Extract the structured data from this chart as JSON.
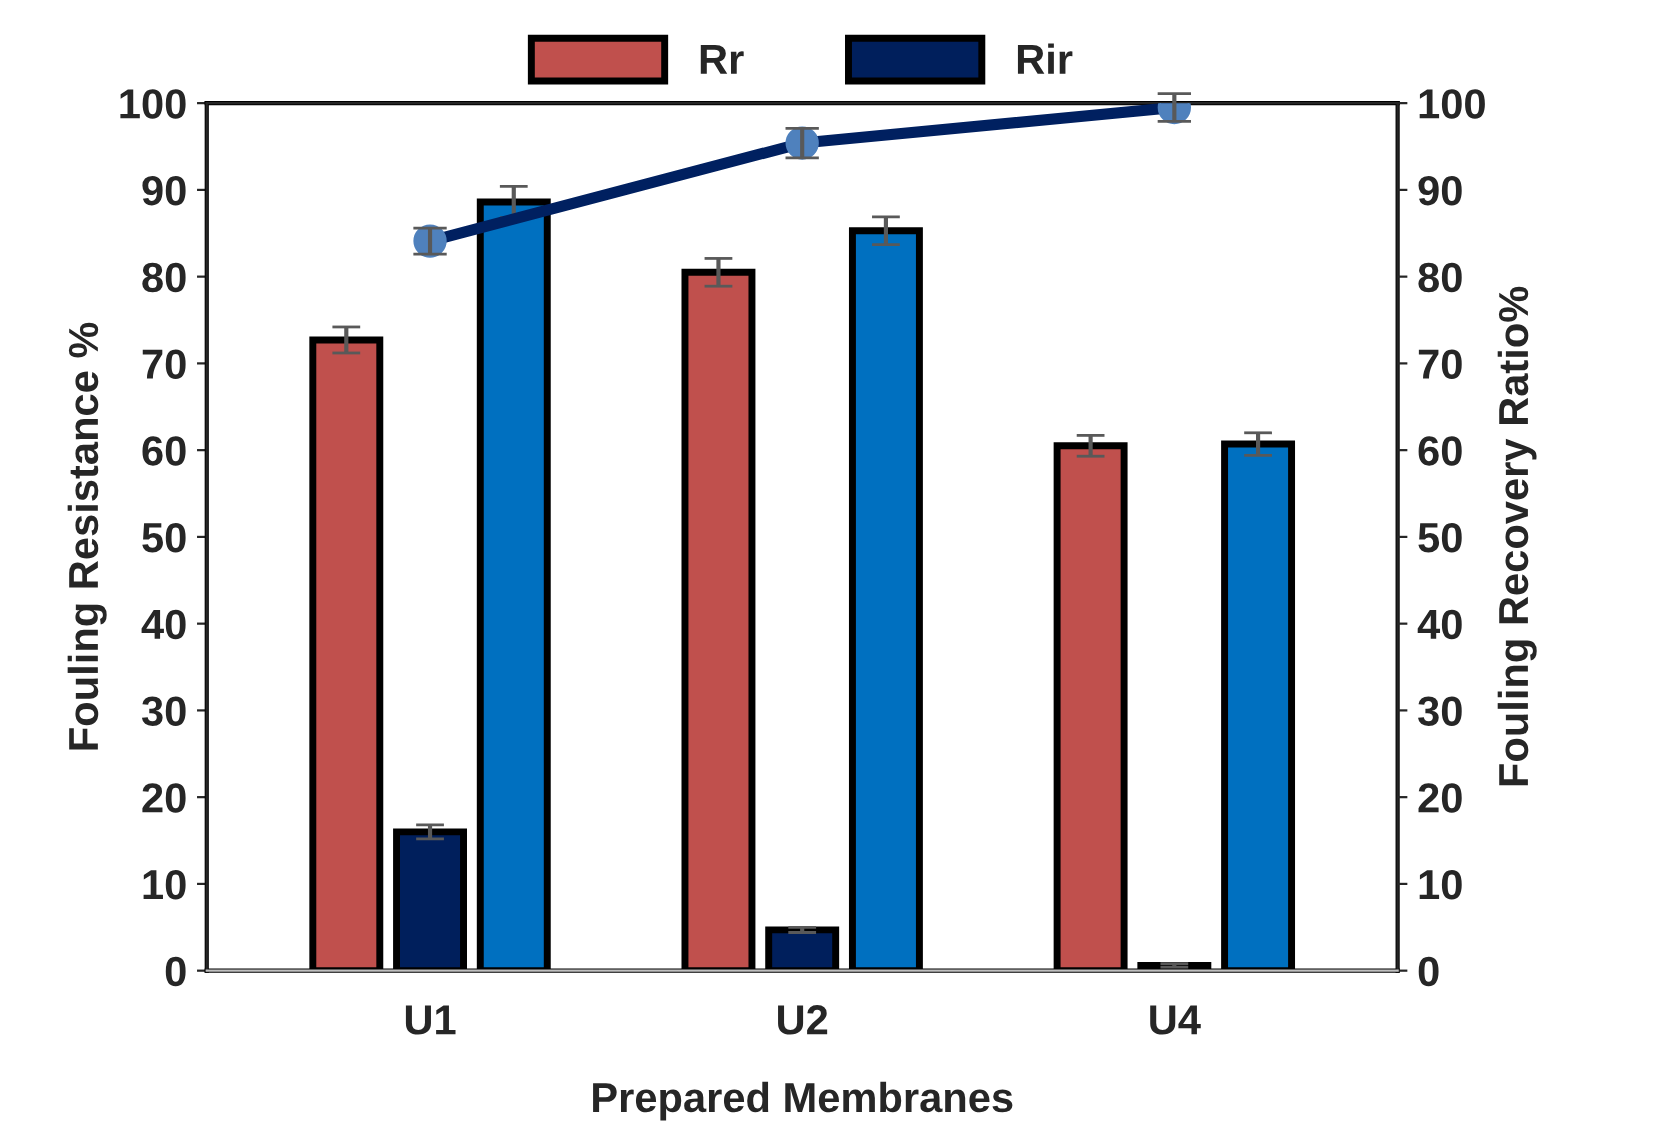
{
  "chart_data": {
    "type": "bar",
    "xlabel": "Prepared Membranes",
    "ylabel": "Fouling Resistance %",
    "y2label": "Fouling Recovery Ratio%",
    "categories": [
      "U1",
      "U2",
      "U4"
    ],
    "series": [
      {
        "name": "Rr",
        "color": "#c0504d",
        "values": [
          72.7,
          80.5,
          60.5
        ],
        "errors": [
          1.5,
          1.6,
          1.2
        ]
      },
      {
        "name": "Rir",
        "color": "#001f5c",
        "values": [
          16.0,
          4.7,
          0.6
        ],
        "errors": [
          0.8,
          0.3,
          0.2
        ]
      },
      {
        "color": "#0070c0",
        "values": [
          88.6,
          85.3,
          60.7
        ],
        "errors": [
          1.8,
          1.6,
          1.3
        ]
      },
      {
        "type": "line",
        "axis": "y2",
        "color": "#002060",
        "values": [
          84.1,
          95.4,
          99.5
        ],
        "errors": [
          1.5,
          1.7,
          1.6
        ]
      }
    ],
    "ylim": [
      0,
      100
    ],
    "yticks": [
      0,
      10,
      20,
      30,
      40,
      50,
      60,
      70,
      80,
      90,
      100
    ],
    "y2lim": [
      0,
      100
    ],
    "y2ticks": [
      0,
      10,
      20,
      30,
      40,
      50,
      60,
      70,
      80,
      90,
      100
    ],
    "marker": "circle",
    "line_style": "solid",
    "grid": false,
    "legend": "top"
  }
}
